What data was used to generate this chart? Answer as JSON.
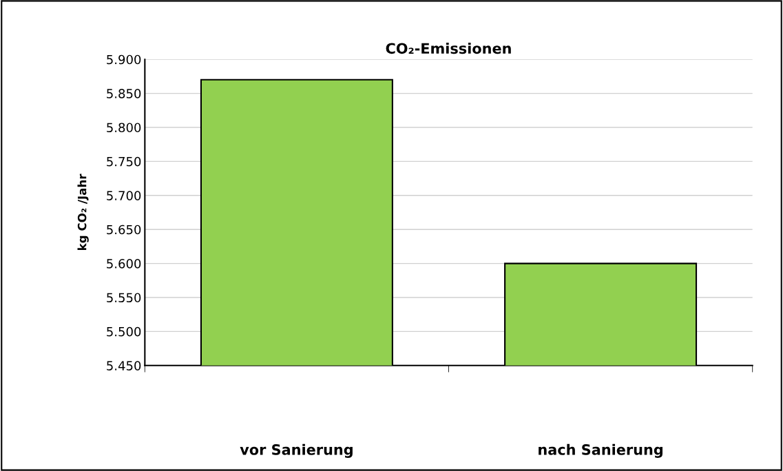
{
  "chart_data": {
    "type": "bar",
    "title": "CO₂-Emissionen",
    "ylabel": "kg CO₂ /Jahr",
    "categories": [
      "vor Sanierung",
      "nach Sanierung"
    ],
    "values": [
      5.87,
      5.6
    ],
    "color": "#92d050",
    "ylim": [
      5.45,
      5.9
    ],
    "yticks": [
      {
        "value": 5.45,
        "label": "5.450"
      },
      {
        "value": 5.5,
        "label": "5.500"
      },
      {
        "value": 5.55,
        "label": "5.550"
      },
      {
        "value": 5.6,
        "label": "5.600"
      },
      {
        "value": 5.65,
        "label": "5.650"
      },
      {
        "value": 5.7,
        "label": "5.700"
      },
      {
        "value": 5.75,
        "label": "5.750"
      },
      {
        "value": 5.8,
        "label": "5.800"
      },
      {
        "value": 5.85,
        "label": "5.850"
      },
      {
        "value": 5.9,
        "label": "5.900"
      }
    ],
    "grid": "y",
    "legend": false
  }
}
